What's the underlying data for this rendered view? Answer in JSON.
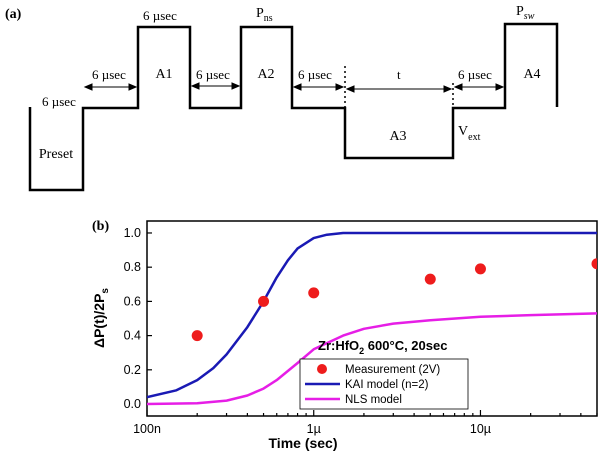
{
  "panel_a": {
    "label": "(a)",
    "pulses": {
      "preset": "Preset",
      "a1": "A1",
      "a2": "A2",
      "a3": "A3",
      "a4": "A4"
    },
    "durations": {
      "preset_wait": "6 µsec",
      "gap1": "6 µsec",
      "a1_width": "6 µsec",
      "gap2": "6 µsec",
      "gap3": "6 µsec",
      "t_wait": "t",
      "gap4": "6 µsec"
    },
    "annotations": {
      "pns_main": "P",
      "pns_sub": "ns",
      "psw_main": "P",
      "psw_sub": "sw",
      "vext_main": "V",
      "vext_sub": "ext"
    }
  },
  "panel_b": {
    "label": "(b)",
    "annotation": {
      "text_main": "Zr:HfO",
      "text_sub": "2",
      "text_rest": " 600°C, 20sec"
    },
    "ylabel_parts": {
      "main": "ΔP(t)/2P",
      "sub": "s"
    },
    "legend": [
      {
        "label": "Measurement (2V)",
        "color": "#ee1c1c",
        "marker": "circle"
      },
      {
        "label": "KAI model (n=2)",
        "color": "#1a1ab4",
        "marker": "line"
      },
      {
        "label": "NLS model",
        "color": "#e61ee6",
        "marker": "line"
      }
    ]
  },
  "chart_data": {
    "type": "scatter",
    "xlabel": "Time (sec)",
    "ylabel": "ΔP(t)/2Ps",
    "x_scale": "log",
    "xlim": [
      1e-07,
      5e-05
    ],
    "ylim": [
      -0.07,
      1.07
    ],
    "x_ticks": [
      1e-07,
      1e-06,
      1e-05
    ],
    "x_tick_labels": [
      "100n",
      "1µ",
      "10µ"
    ],
    "y_ticks": [
      0.0,
      0.2,
      0.4,
      0.6,
      0.8,
      1.0
    ],
    "y_tick_labels": [
      "0.0",
      "0.2",
      "0.4",
      "0.6",
      "0.8",
      "1.0"
    ],
    "grid": false,
    "legend_position": "bottom-right",
    "series": [
      {
        "name": "Measurement (2V)",
        "kind": "scatter",
        "color": "#ee1c1c",
        "x": [
          2e-07,
          5e-07,
          1e-06,
          5e-06,
          1e-05,
          5e-05
        ],
        "y": [
          0.4,
          0.6,
          0.65,
          0.73,
          0.79,
          0.82
        ]
      },
      {
        "name": "KAI model (n=2)",
        "kind": "line",
        "color": "#1a1ab4",
        "x": [
          1e-07,
          1.5e-07,
          2e-07,
          2.5e-07,
          3e-07,
          4e-07,
          5e-07,
          6e-07,
          7e-07,
          8e-07,
          1e-06,
          1.2e-06,
          1.5e-06,
          2e-06,
          5e-06,
          1e-05,
          5e-05
        ],
        "y": [
          0.04,
          0.08,
          0.14,
          0.21,
          0.29,
          0.45,
          0.6,
          0.74,
          0.84,
          0.91,
          0.97,
          0.99,
          1.0,
          1.0,
          1.0,
          1.0,
          1.0
        ]
      },
      {
        "name": "NLS model",
        "kind": "line",
        "color": "#e61ee6",
        "x": [
          1e-07,
          2e-07,
          3e-07,
          4e-07,
          5e-07,
          6e-07,
          8e-07,
          1e-06,
          1.5e-06,
          2e-06,
          3e-06,
          5e-06,
          1e-05,
          2e-05,
          5e-05
        ],
        "y": [
          0.0,
          0.005,
          0.02,
          0.05,
          0.09,
          0.14,
          0.24,
          0.32,
          0.4,
          0.44,
          0.47,
          0.49,
          0.51,
          0.52,
          0.53
        ]
      }
    ]
  }
}
